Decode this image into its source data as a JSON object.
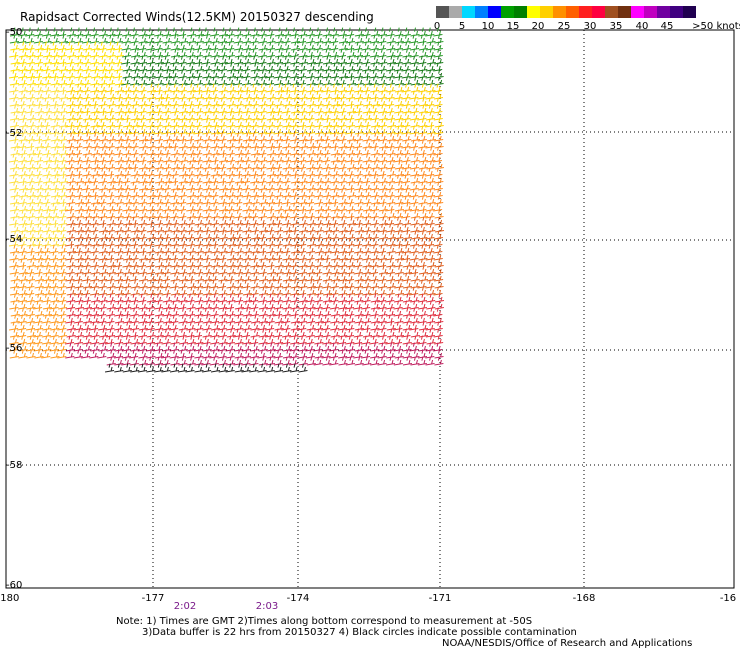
{
  "title": "Rapidsact Corrected Winds(12.5KM) 20150327 descending",
  "colorbar": {
    "colors": [
      "#555555",
      "#aaaaaa",
      "#00d8ff",
      "#0080ff",
      "#0000ff",
      "#00a000",
      "#008000",
      "#ffff00",
      "#ffd000",
      "#ff9000",
      "#ff6000",
      "#ff2020",
      "#ff0040",
      "#a05020",
      "#703010",
      "#ff00ff",
      "#c000c0",
      "#7000a0",
      "#400080",
      "#200050"
    ],
    "ticks": [
      "0",
      "5",
      "10",
      "15",
      "20",
      "25",
      "30",
      "35",
      "40",
      "45",
      ">50 knots"
    ]
  },
  "lat_labels": [
    "-50",
    "-52",
    "-54",
    "-56",
    "-58",
    "-60"
  ],
  "lon_labels": [
    "-180",
    "-177",
    "-174",
    "-171",
    "-168",
    "-16"
  ],
  "times": [
    "2:02",
    "2:03"
  ],
  "notes": {
    "line1": "Note: 1) Times are GMT 2)Times along bottom correspond to measurement at -50S",
    "line2": "3)Data buffer is 22 hrs from 20150327 4) Black circles indicate possible contamination",
    "line3": "NOAA/NESDIS/Office of Research and Applications"
  }
}
